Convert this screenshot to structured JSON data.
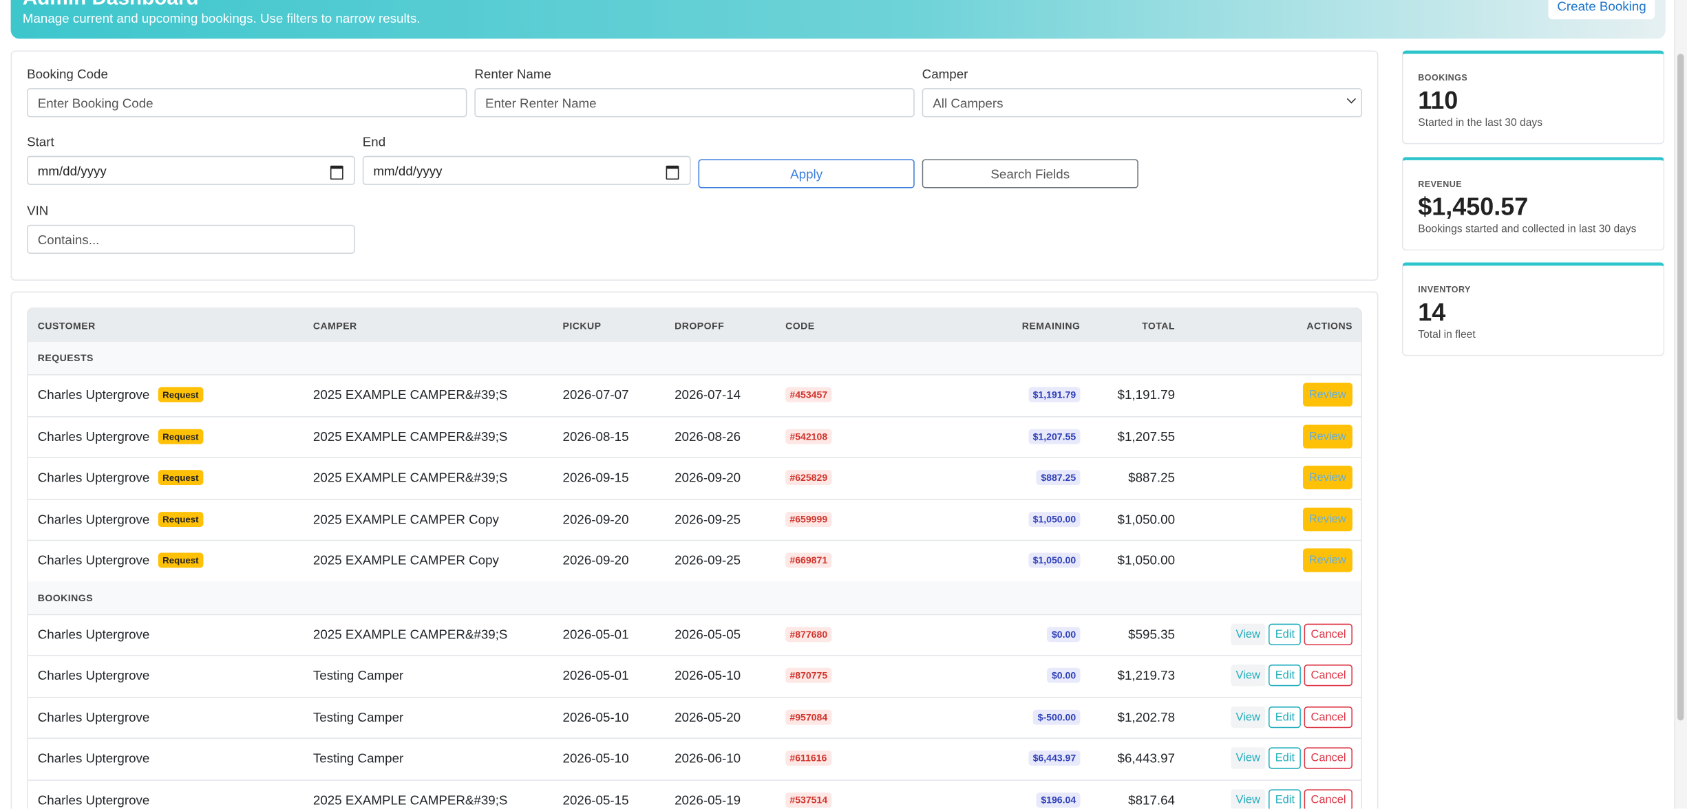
{
  "header": {
    "title": "Admin Dashboard",
    "subtitle": "Manage current and upcoming bookings. Use filters to narrow results.",
    "button": "Create Booking"
  },
  "filters": {
    "booking_code": {
      "label": "Booking Code",
      "placeholder": "Enter Booking Code"
    },
    "renter_name": {
      "label": "Renter Name",
      "placeholder": "Enter Renter Name"
    },
    "camper": {
      "label": "Camper",
      "value": "All Campers"
    },
    "start": {
      "label": "Start",
      "placeholder": "mm/dd/yyyy"
    },
    "end": {
      "label": "End",
      "placeholder": "mm/dd/yyyy"
    },
    "apply": "Apply",
    "search_fields": "Search Fields",
    "vin": {
      "label": "VIN",
      "placeholder": "Contains..."
    }
  },
  "stats": [
    {
      "label": "BOOKINGS",
      "value": "110",
      "note": "Started in the last 30 days"
    },
    {
      "label": "REVENUE",
      "value": "$1,450.57",
      "note": "Bookings started and collected in last 30 days"
    },
    {
      "label": "INVENTORY",
      "value": "14",
      "note": "Total in fleet"
    }
  ],
  "table": {
    "columns": [
      "CUSTOMER",
      "CAMPER",
      "PICKUP",
      "DROPOFF",
      "CODE",
      "REMAINING",
      "TOTAL",
      "ACTIONS"
    ],
    "sections": [
      {
        "title": "REQUESTS",
        "rows": [
          {
            "customer": "Charles Uptergrove",
            "badge": "Request",
            "camper": "2025 EXAMPLE CAMPER&#39;S",
            "pickup": "2026-07-07",
            "dropoff": "2026-07-14",
            "code": "#453457",
            "remaining": "$1,191.79",
            "total": "$1,191.79",
            "actions": [
              "Review"
            ]
          },
          {
            "customer": "Charles Uptergrove",
            "badge": "Request",
            "camper": "2025 EXAMPLE CAMPER&#39;S",
            "pickup": "2026-08-15",
            "dropoff": "2026-08-26",
            "code": "#542108",
            "remaining": "$1,207.55",
            "total": "$1,207.55",
            "actions": [
              "Review"
            ]
          },
          {
            "customer": "Charles Uptergrove",
            "badge": "Request",
            "camper": "2025 EXAMPLE CAMPER&#39;S",
            "pickup": "2026-09-15",
            "dropoff": "2026-09-20",
            "code": "#625829",
            "remaining": "$887.25",
            "total": "$887.25",
            "actions": [
              "Review"
            ]
          },
          {
            "customer": "Charles Uptergrove",
            "badge": "Request",
            "camper": "2025 EXAMPLE CAMPER Copy",
            "pickup": "2026-09-20",
            "dropoff": "2026-09-25",
            "code": "#659999",
            "remaining": "$1,050.00",
            "total": "$1,050.00",
            "actions": [
              "Review"
            ]
          },
          {
            "customer": "Charles Uptergrove",
            "badge": "Request",
            "camper": "2025 EXAMPLE CAMPER Copy",
            "pickup": "2026-09-20",
            "dropoff": "2026-09-25",
            "code": "#669871",
            "remaining": "$1,050.00",
            "total": "$1,050.00",
            "actions": [
              "Review"
            ]
          }
        ]
      },
      {
        "title": "BOOKINGS",
        "rows": [
          {
            "customer": "Charles Uptergrove",
            "camper": "2025 EXAMPLE CAMPER&#39;S",
            "pickup": "2026-05-01",
            "dropoff": "2026-05-05",
            "code": "#877680",
            "remaining": "$0.00",
            "total": "$595.35",
            "actions": [
              "View",
              "Edit",
              "Cancel"
            ]
          },
          {
            "customer": "Charles Uptergrove",
            "camper": "Testing Camper",
            "pickup": "2026-05-01",
            "dropoff": "2026-05-10",
            "code": "#870775",
            "remaining": "$0.00",
            "total": "$1,219.73",
            "actions": [
              "View",
              "Edit",
              "Cancel"
            ]
          },
          {
            "customer": "Charles Uptergrove",
            "camper": "Testing Camper",
            "pickup": "2026-05-10",
            "dropoff": "2026-05-20",
            "code": "#957084",
            "remaining": "$-500.00",
            "total": "$1,202.78",
            "actions": [
              "View",
              "Edit",
              "Cancel"
            ]
          },
          {
            "customer": "Charles Uptergrove",
            "camper": "Testing Camper",
            "pickup": "2026-05-10",
            "dropoff": "2026-06-10",
            "code": "#611616",
            "remaining": "$6,443.97",
            "total": "$6,443.97",
            "actions": [
              "View",
              "Edit",
              "Cancel"
            ]
          },
          {
            "customer": "Charles Uptergrove",
            "camper": "2025 EXAMPLE CAMPER&#39;S",
            "pickup": "2026-05-15",
            "dropoff": "2026-05-19",
            "code": "#537514",
            "remaining": "$196.04",
            "total": "$817.64",
            "actions": [
              "View",
              "Edit",
              "Cancel"
            ]
          }
        ]
      }
    ]
  }
}
